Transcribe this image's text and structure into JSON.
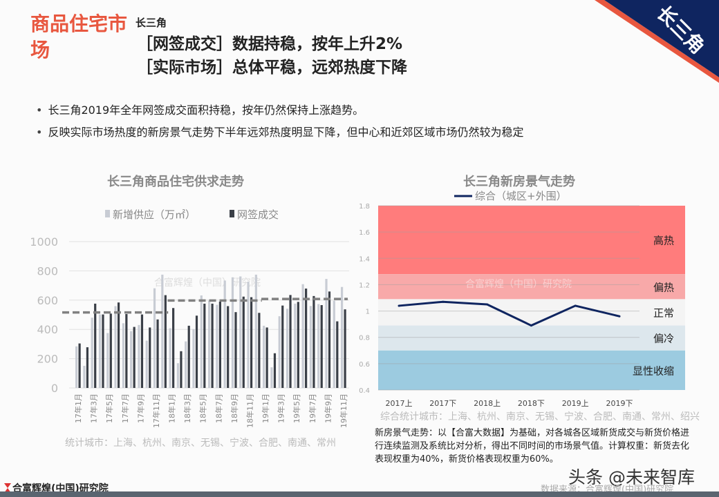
{
  "header": {
    "title": "商品住宅市场",
    "region": "长三角",
    "headline1": "［网签成交］数据持稳，按年上升2%",
    "headline2": "［实际市场］总体平稳，远郊热度下降",
    "corner_tag": "长三角",
    "colors": {
      "accent": "#e8573f",
      "navy": "#0f2560"
    }
  },
  "bullets": [
    "长三角2019年全年网签成交面积持稳，按年仍然保持上涨趋势。",
    "反映实际市场热度的新房景气走势下半年远郊热度明显下降，但中心和近郊区域市场仍然较为稳定"
  ],
  "chart_data": [
    {
      "type": "bar",
      "title": "长三角商品住宅供求走势",
      "watermark": "合富辉煌（中国）研究院",
      "categories": [
        "17年1月",
        "17年2月",
        "17年3月",
        "17年4月",
        "17年5月",
        "17年6月",
        "17年7月",
        "17年8月",
        "17年9月",
        "17年10月",
        "17年11月",
        "17年12月",
        "18年1月",
        "18年2月",
        "18年3月",
        "18年4月",
        "18年5月",
        "18年6月",
        "18年7月",
        "18年8月",
        "18年9月",
        "18年10月",
        "18年11月",
        "18年12月",
        "19年1月",
        "19年2月",
        "19年3月",
        "19年4月",
        "19年5月",
        "19年6月",
        "19年7月",
        "19年8月",
        "19年9月",
        "19年10月",
        "19年11月"
      ],
      "visible_tick_labels": [
        "17年1月",
        "17年3月",
        "17年5月",
        "17年7月",
        "17年9月",
        "17年11月",
        "18年1月",
        "18年3月",
        "18年5月",
        "18年7月",
        "18年9月",
        "18年11月",
        "19年1月",
        "19年3月",
        "19年5月",
        "19年7月",
        "19年9月",
        "19年11月"
      ],
      "series": [
        {
          "name": "新增供应（万㎡）",
          "color": "#c8ccd4",
          "values": [
            284,
            151,
            480,
            502,
            375,
            559,
            442,
            388,
            430,
            323,
            681,
            774,
            408,
            169,
            318,
            402,
            632,
            596,
            568,
            734,
            756,
            762,
            726,
            774,
            425,
            141,
            490,
            541,
            576,
            709,
            560,
            573,
            745,
            596,
            690
          ]
        },
        {
          "name": "网签成交",
          "color": "#3a3f47",
          "values": [
            304,
            278,
            576,
            502,
            508,
            584,
            505,
            417,
            502,
            413,
            468,
            634,
            546,
            251,
            425,
            494,
            576,
            576,
            590,
            559,
            518,
            624,
            620,
            513,
            413,
            237,
            563,
            635,
            588,
            679,
            628,
            566,
            659,
            455,
            537
          ]
        }
      ],
      "annual_average_lines": [
        {
          "period": "2017",
          "value": 516
        },
        {
          "period": "2018",
          "value": 597
        },
        {
          "period": "2019",
          "value": 608
        }
      ],
      "yticks": [
        0,
        200,
        400,
        600,
        800,
        1000
      ],
      "ylim": [
        0,
        1000
      ],
      "grid": true,
      "legend": "top",
      "footnote": "统计城市：上海、杭州、南京、无锡、宁波、合肥、南通、常州"
    },
    {
      "type": "line",
      "title": "长三角新房景气走势",
      "watermark": "合富辉煌（中国）研究院",
      "categories": [
        "2017上",
        "2017下",
        "2018上",
        "2018下",
        "2019上",
        "2019下"
      ],
      "series": [
        {
          "name": "综合（城区+外围）",
          "color": "#0f2560",
          "values": [
            1.04,
            1.07,
            1.05,
            0.89,
            1.04,
            0.96
          ]
        }
      ],
      "yticks": [
        "0.4",
        "0.6",
        "0.8",
        "1",
        "1.2",
        "1.4",
        "1.6",
        "1.8"
      ],
      "ylim": [
        0.4,
        1.8
      ],
      "grid": true,
      "legend": "top",
      "bands": [
        {
          "label": "高热",
          "from": 1.28,
          "to": 1.8,
          "color": "#ff7c7c"
        },
        {
          "label": "偏热",
          "from": 1.09,
          "to": 1.28,
          "color": "#f8a9a9"
        },
        {
          "label": "正常",
          "from": 0.89,
          "to": 1.09,
          "color": "#f4f4f4"
        },
        {
          "label": "偏冷",
          "from": 0.7,
          "to": 0.89,
          "color": "#dde7ed"
        },
        {
          "label": "显性收缩",
          "from": 0.4,
          "to": 0.7,
          "color": "#9ccbe0"
        }
      ],
      "footnote": "综合统计城市：上海、杭州、南京、无锡、宁波、合肥、南通、常州、绍兴"
    }
  ],
  "note": "新房景气走势：以【合富大数据】为基础，对各城各区域新货成交与新货价格进行连续监测及系统比对分析，得出不同时间的市场景气值。计算权重：新货去化表现权重为40%，新货价格表现权重为60%。",
  "footer": {
    "logo_text": "合富辉煌(中国)研究院",
    "source": "数据来源：合富辉煌(中国)研究院",
    "watermark": "头条 @未来智库"
  }
}
